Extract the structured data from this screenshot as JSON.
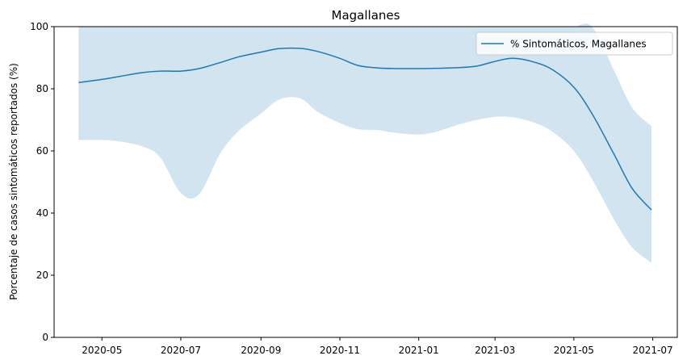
{
  "chart_data": {
    "type": "line",
    "title": "Magallanes",
    "xlabel": "",
    "ylabel": "Porcentaje de casos sintomáticos reportados (%)",
    "ylim": [
      0,
      100
    ],
    "xlim": [
      "2020-03-25",
      "2021-07-20"
    ],
    "grid": false,
    "legend_position": "top-right",
    "x_ticks": [
      {
        "date": "2020-05-01",
        "label": "2020-05"
      },
      {
        "date": "2020-07-01",
        "label": "2020-07"
      },
      {
        "date": "2020-09-01",
        "label": "2020-09"
      },
      {
        "date": "2020-11-01",
        "label": "2020-11"
      },
      {
        "date": "2021-01-01",
        "label": "2021-01"
      },
      {
        "date": "2021-03-01",
        "label": "2021-03"
      },
      {
        "date": "2021-05-01",
        "label": "2021-05"
      },
      {
        "date": "2021-07-01",
        "label": "2021-07"
      }
    ],
    "y_ticks": [
      0,
      20,
      40,
      60,
      80,
      100
    ],
    "series": [
      {
        "name": "% Sintomáticos, Magallanes",
        "color": "#1f77b4",
        "band_color": "#1f77b4",
        "x": [
          "2020-04-13",
          "2020-05-01",
          "2020-05-15",
          "2020-06-01",
          "2020-06-15",
          "2020-07-01",
          "2020-07-15",
          "2020-08-01",
          "2020-08-15",
          "2020-09-01",
          "2020-09-15",
          "2020-10-01",
          "2020-10-15",
          "2020-11-01",
          "2020-11-15",
          "2020-12-01",
          "2020-12-15",
          "2021-01-01",
          "2021-01-15",
          "2021-02-01",
          "2021-02-15",
          "2021-03-01",
          "2021-03-15",
          "2021-04-01",
          "2021-04-15",
          "2021-05-01",
          "2021-05-15",
          "2021-06-01",
          "2021-06-15",
          "2021-06-30"
        ],
        "values": [
          82,
          83,
          84,
          85.2,
          85.7,
          85.7,
          86.5,
          88.5,
          90.3,
          91.8,
          92.9,
          93,
          92,
          89.8,
          87.5,
          86.7,
          86.5,
          86.5,
          86.6,
          86.8,
          87.3,
          88.8,
          89.8,
          88.5,
          86,
          80.5,
          72,
          59,
          48,
          41
        ],
        "upper": [
          100,
          100,
          100,
          100,
          100,
          100,
          100,
          100,
          100,
          100,
          100,
          100,
          100,
          100,
          100,
          100,
          100,
          100,
          100,
          100,
          100,
          100,
          100,
          100,
          100,
          100,
          100,
          86,
          74,
          68
        ],
        "lower": [
          63.5,
          63.5,
          63,
          61.5,
          58,
          46.5,
          46,
          59.5,
          66.5,
          72,
          76.5,
          77,
          72.5,
          69,
          67,
          66.7,
          65.8,
          65.3,
          66.2,
          68.5,
          70,
          71,
          70.8,
          69,
          66,
          60,
          51,
          38,
          29,
          24
        ]
      }
    ]
  }
}
